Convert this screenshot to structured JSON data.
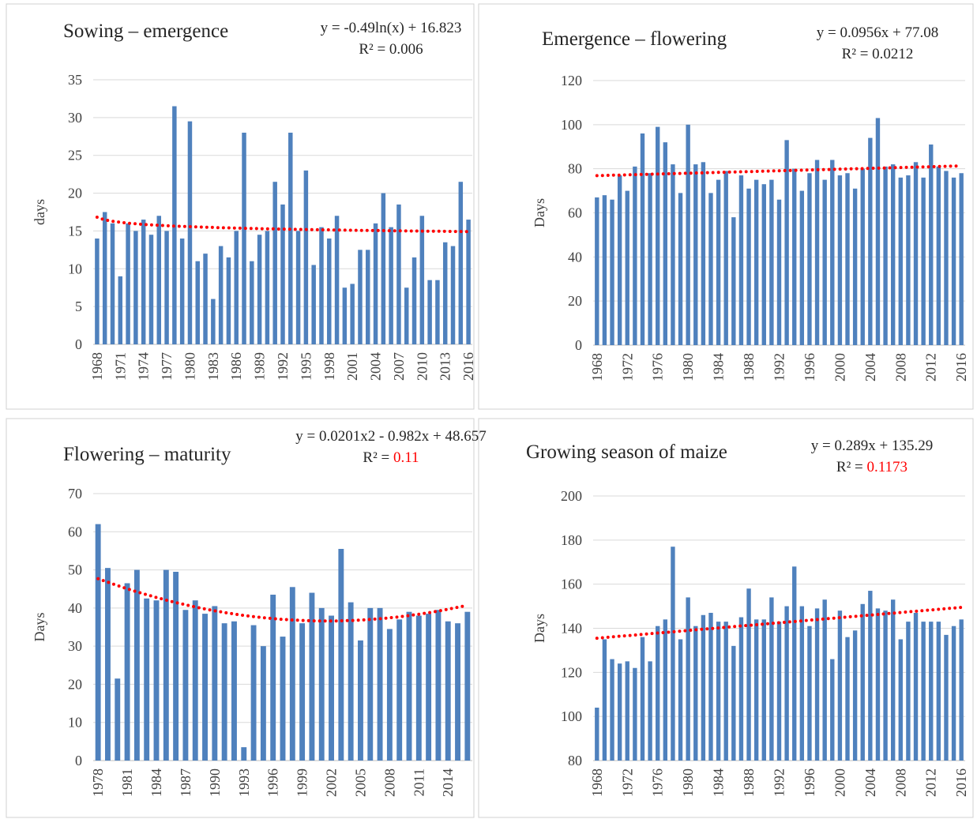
{
  "chart_data": [
    {
      "type": "bar",
      "title": "Sowing – emergence",
      "y_label": "days",
      "equation": "y = -0.49ln(x) + 16.823",
      "r2_label": "R² = ",
      "r2_value": "0.006",
      "r2_color": "#262626",
      "categories": [
        "1968",
        null,
        null,
        "1971",
        null,
        null,
        "1974",
        null,
        null,
        "1977",
        null,
        null,
        "1980",
        null,
        null,
        "1983",
        null,
        null,
        "1986",
        null,
        null,
        "1989",
        null,
        null,
        "1992",
        null,
        null,
        "1995",
        null,
        null,
        "1998",
        null,
        null,
        "2001",
        null,
        null,
        "2004",
        null,
        null,
        "2007",
        null,
        null,
        "2010",
        null,
        null,
        "2013",
        null,
        null,
        "2016"
      ],
      "values": [
        14,
        17.5,
        16,
        9,
        16,
        15,
        16.5,
        14.5,
        17,
        15,
        31.5,
        14,
        29.5,
        11,
        12,
        6,
        13,
        11.5,
        15,
        28,
        11,
        14.5,
        15,
        21.5,
        18.5,
        28,
        15,
        23,
        10.5,
        15.5,
        14,
        17,
        7.5,
        8,
        12.5,
        12.5,
        16,
        20,
        15.5,
        18.5,
        7.5,
        11.5,
        17,
        8.5,
        8.5,
        13.5,
        13,
        21.5,
        16.5
      ],
      "color": "#4f81bd",
      "trendline": {
        "type": "log",
        "color": "#ff0000"
      },
      "ylim": [
        0,
        35
      ],
      "yticks": [
        0,
        5,
        10,
        15,
        20,
        25,
        30,
        35
      ],
      "grid": true
    },
    {
      "type": "bar",
      "title": "Emergence – flowering",
      "y_label": "Days",
      "equation": "y = 0.0956x + 77.08",
      "r2_label": "R² = ",
      "r2_value": "0.0212",
      "r2_color": "#262626",
      "categories": [
        "1968",
        null,
        null,
        null,
        "1972",
        null,
        null,
        null,
        "1976",
        null,
        null,
        null,
        "1980",
        null,
        null,
        null,
        "1984",
        null,
        null,
        null,
        "1988",
        null,
        null,
        null,
        "1992",
        null,
        null,
        null,
        "1996",
        null,
        null,
        null,
        "2000",
        null,
        null,
        null,
        "2004",
        null,
        null,
        null,
        "2008",
        null,
        null,
        null,
        "2012",
        null,
        null,
        null,
        "2016"
      ],
      "values": [
        67,
        68,
        66,
        77,
        70,
        81,
        96,
        78,
        99,
        92,
        82,
        69,
        100,
        82,
        83,
        69,
        75,
        79,
        58,
        77,
        71,
        75,
        73,
        75,
        66,
        93,
        80,
        70,
        78,
        84,
        75,
        84,
        77,
        78,
        71,
        80,
        94,
        103,
        81,
        82,
        76,
        77,
        83,
        76,
        91,
        81,
        79,
        76,
        78
      ],
      "color": "#4f81bd",
      "trendline": {
        "type": "linear",
        "color": "#ff0000"
      },
      "ylim": [
        0,
        120
      ],
      "yticks": [
        0,
        20,
        40,
        60,
        80,
        100,
        120
      ],
      "grid": true
    },
    {
      "type": "bar",
      "title": "Flowering – maturity",
      "y_label": "Days",
      "equation": "y = 0.0201x2 - 0.982x + 48.657",
      "r2_label": "R² = ",
      "r2_value": "0.11",
      "r2_color": "#ff0000",
      "categories": [
        "1978",
        null,
        null,
        "1981",
        null,
        null,
        "1984",
        null,
        null,
        "1987",
        null,
        null,
        "1990",
        null,
        null,
        "1993",
        null,
        null,
        "1996",
        null,
        null,
        "1999",
        null,
        null,
        "2002",
        null,
        null,
        "2005",
        null,
        null,
        "2008",
        null,
        null,
        "2011",
        null,
        null,
        "2014",
        null,
        null
      ],
      "values": [
        62,
        50.5,
        21.5,
        46.5,
        50,
        42.5,
        42,
        50,
        49.5,
        39.5,
        42,
        38.5,
        40.5,
        36,
        36.5,
        3.5,
        35.5,
        30,
        43.5,
        32.5,
        45.5,
        36,
        44,
        40,
        38,
        55.5,
        41.5,
        31.5,
        40,
        40,
        34.5,
        37,
        39,
        38,
        38.5,
        39.5,
        36.5,
        36,
        39
      ],
      "color": "#4f81bd",
      "trendline": {
        "type": "poly2",
        "color": "#ff0000"
      },
      "ylim": [
        0,
        70
      ],
      "yticks": [
        0,
        10,
        20,
        30,
        40,
        50,
        60,
        70
      ],
      "grid": true
    },
    {
      "type": "bar",
      "title": "Growing season of maize",
      "y_label": "Days",
      "equation": "y = 0.289x + 135.29",
      "r2_label": "R² = ",
      "r2_value": "0.1173",
      "r2_color": "#ff0000",
      "categories": [
        "1968",
        null,
        null,
        null,
        "1972",
        null,
        null,
        null,
        "1976",
        null,
        null,
        null,
        "1980",
        null,
        null,
        null,
        "1984",
        null,
        null,
        null,
        "1988",
        null,
        null,
        null,
        "1992",
        null,
        null,
        null,
        "1996",
        null,
        null,
        null,
        "2000",
        null,
        null,
        null,
        "2004",
        null,
        null,
        null,
        "2008",
        null,
        null,
        null,
        "2012",
        null,
        null,
        null,
        "2016"
      ],
      "values": [
        104,
        135,
        126,
        124,
        125,
        122,
        136,
        125,
        141,
        144,
        177,
        135,
        154,
        141,
        146,
        147,
        143,
        143,
        132,
        145,
        158,
        144,
        144,
        154,
        143,
        150,
        168,
        150,
        141,
        149,
        153,
        126,
        148,
        136,
        139,
        151,
        157,
        149,
        148,
        153,
        135,
        143,
        147,
        143,
        143,
        143,
        137,
        141,
        144
      ],
      "color": "#4f81bd",
      "trendline": {
        "type": "linear",
        "color": "#ff0000"
      },
      "ylim": [
        80,
        200
      ],
      "yticks": [
        80,
        100,
        120,
        140,
        160,
        180,
        200
      ],
      "grid": true
    }
  ]
}
